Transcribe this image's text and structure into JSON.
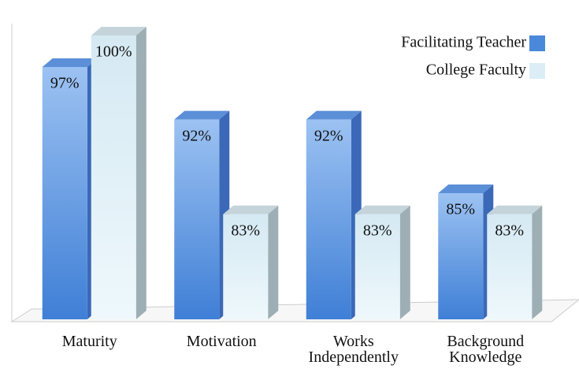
{
  "chart_data": {
    "type": "bar3d",
    "categories": [
      "Maturity",
      "Motivation",
      "Works Independently",
      "Background Knowledge"
    ],
    "series": [
      {
        "name": "Facilitating Teacher",
        "color": "#4a88da",
        "values": [
          97,
          92,
          92,
          85
        ],
        "value_labels": [
          "97%",
          "92%",
          "92%",
          "85%"
        ]
      },
      {
        "name": "College Faculty",
        "color": "#dcedf6",
        "values": [
          100,
          83,
          83,
          83
        ],
        "value_labels": [
          "100%",
          "83%",
          "83%",
          "83%"
        ]
      }
    ],
    "ylim": [
      73,
      100
    ],
    "legend": "top-right"
  }
}
